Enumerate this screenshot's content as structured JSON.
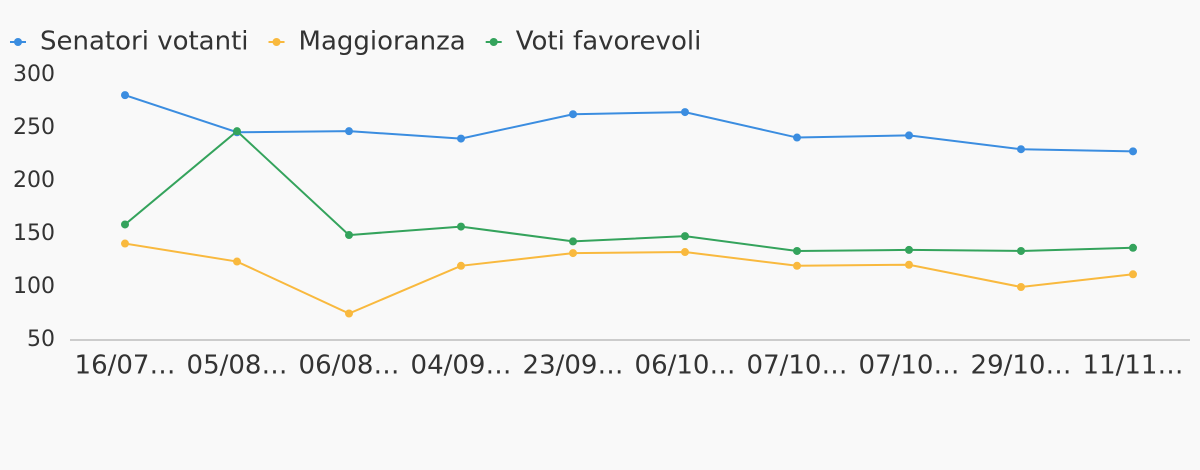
{
  "chart_data": {
    "type": "line",
    "categories": [
      "16/07…",
      "05/08…",
      "06/08…",
      "04/09…",
      "23/09…",
      "06/10…",
      "07/10…",
      "07/10…",
      "29/10…",
      "11/11…"
    ],
    "series": [
      {
        "name": "Senatori votanti",
        "color": "#3b8de0",
        "values": [
          281,
          246,
          247,
          240,
          263,
          265,
          241,
          243,
          230,
          228
        ]
      },
      {
        "name": "Maggioranza",
        "color": "#f9b93e",
        "values": [
          141,
          124,
          75,
          120,
          132,
          133,
          120,
          121,
          100,
          112
        ]
      },
      {
        "name": "Voti favorevoli",
        "color": "#34a35c",
        "values": [
          159,
          247,
          149,
          157,
          143,
          148,
          134,
          135,
          134,
          137
        ]
      }
    ],
    "ylim": [
      50,
      300
    ],
    "yticks": [
      50,
      100,
      150,
      200,
      250,
      300
    ],
    "grid": false,
    "legend": "top"
  }
}
